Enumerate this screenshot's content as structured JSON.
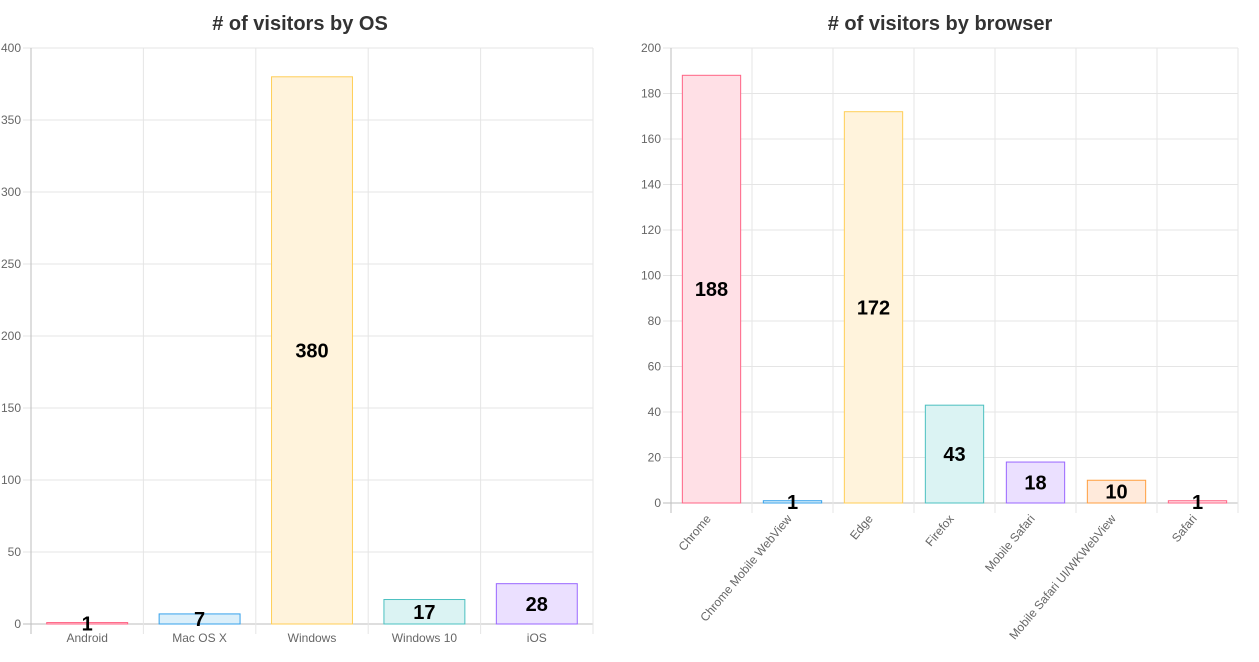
{
  "chart_data": [
    {
      "type": "bar",
      "title": "# of visitors by OS",
      "categories": [
        "Android",
        "Mac OS X",
        "Windows",
        "Windows 10",
        "iOS"
      ],
      "values": [
        1,
        7,
        380,
        17,
        28
      ],
      "ylim": [
        0,
        400
      ],
      "ytick_step": 50,
      "yticks": [
        "0",
        "50",
        "100",
        "150",
        "200",
        "250",
        "300",
        "350",
        "400"
      ],
      "grid": true,
      "legend": "none",
      "xlabel_rotation": 0,
      "colors": {
        "fill": [
          "#ffe0e6",
          "#dbeffa",
          "#fff3dc",
          "#dbf3f3",
          "#ebe0ff"
        ],
        "border": [
          "#ff6384",
          "#36a2eb",
          "#ffce56",
          "#4bc0c0",
          "#9966ff"
        ]
      }
    },
    {
      "type": "bar",
      "title": "# of visitors by browser",
      "categories": [
        "Chrome",
        "Chrome Mobile WebView",
        "Edge",
        "Firefox",
        "Mobile Safari",
        "Mobile Safari UI/WKWebView",
        "Safari"
      ],
      "values": [
        188,
        1,
        172,
        43,
        18,
        10,
        1
      ],
      "ylim": [
        0,
        200
      ],
      "ytick_step": 20,
      "yticks": [
        "0",
        "20",
        "40",
        "60",
        "80",
        "100",
        "120",
        "140",
        "160",
        "180",
        "200"
      ],
      "grid": true,
      "legend": "none",
      "xlabel_rotation": -50,
      "colors": {
        "fill": [
          "#ffe0e6",
          "#dbeffa",
          "#fff3dc",
          "#dbf3f3",
          "#ebe0ff",
          "#ffeadb",
          "#ffe0e6"
        ],
        "border": [
          "#ff6384",
          "#36a2eb",
          "#ffce56",
          "#4bc0c0",
          "#9966ff",
          "#ff9f40",
          "#ff6384"
        ]
      }
    }
  ]
}
